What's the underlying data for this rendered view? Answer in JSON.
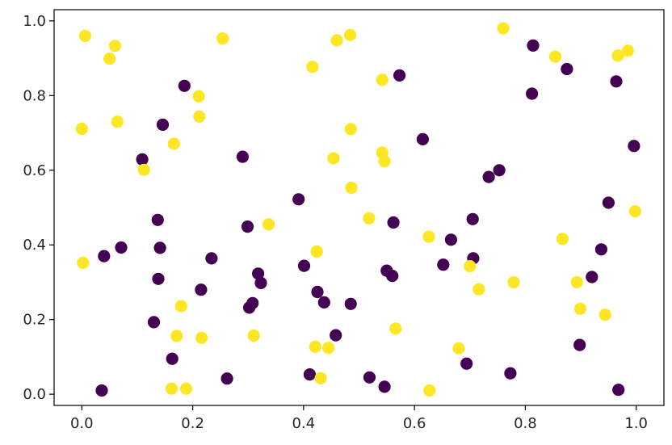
{
  "chart_data": {
    "type": "scatter",
    "xlim": [
      -0.05,
      1.05
    ],
    "ylim": [
      -0.03,
      1.03
    ],
    "x_ticks": [
      0.0,
      0.2,
      0.4,
      0.6,
      0.8,
      1.0
    ],
    "x_tick_labels": [
      "0.0",
      "0.2",
      "0.4",
      "0.6",
      "0.8",
      "1.0"
    ],
    "y_ticks": [
      0.0,
      0.2,
      0.4,
      0.6,
      0.8,
      1.0
    ],
    "y_tick_labels": [
      "0.0",
      "0.2",
      "0.4",
      "0.6",
      "0.8",
      "1.0"
    ],
    "grid": false,
    "legend": "none",
    "colors": {
      "class_0": "#440154",
      "class_1": "#fde725"
    },
    "series": [
      {
        "class": 0,
        "points": [
          [
            0.036,
            0.01
          ],
          [
            0.04,
            0.37
          ],
          [
            0.071,
            0.393
          ],
          [
            0.109,
            0.629
          ],
          [
            0.13,
            0.193
          ],
          [
            0.137,
            0.467
          ],
          [
            0.138,
            0.309
          ],
          [
            0.141,
            0.392
          ],
          [
            0.146,
            0.722
          ],
          [
            0.163,
            0.095
          ],
          [
            0.185,
            0.826
          ],
          [
            0.215,
            0.28
          ],
          [
            0.234,
            0.364
          ],
          [
            0.262,
            0.042
          ],
          [
            0.29,
            0.636
          ],
          [
            0.299,
            0.449
          ],
          [
            0.302,
            0.232
          ],
          [
            0.308,
            0.244
          ],
          [
            0.318,
            0.323
          ],
          [
            0.323,
            0.298
          ],
          [
            0.391,
            0.522
          ],
          [
            0.401,
            0.344
          ],
          [
            0.411,
            0.053
          ],
          [
            0.425,
            0.274
          ],
          [
            0.437,
            0.246
          ],
          [
            0.458,
            0.158
          ],
          [
            0.485,
            0.242
          ],
          [
            0.519,
            0.045
          ],
          [
            0.546,
            0.02
          ],
          [
            0.55,
            0.331
          ],
          [
            0.56,
            0.317
          ],
          [
            0.562,
            0.46
          ],
          [
            0.573,
            0.854
          ],
          [
            0.615,
            0.683
          ],
          [
            0.652,
            0.347
          ],
          [
            0.666,
            0.414
          ],
          [
            0.694,
            0.082
          ],
          [
            0.705,
            0.469
          ],
          [
            0.706,
            0.364
          ],
          [
            0.734,
            0.582
          ],
          [
            0.753,
            0.6
          ],
          [
            0.773,
            0.056
          ],
          [
            0.812,
            0.805
          ],
          [
            0.814,
            0.934
          ],
          [
            0.875,
            0.871
          ],
          [
            0.898,
            0.132
          ],
          [
            0.92,
            0.314
          ],
          [
            0.937,
            0.388
          ],
          [
            0.95,
            0.513
          ],
          [
            0.964,
            0.838
          ],
          [
            0.968,
            0.012
          ],
          [
            0.996,
            0.665
          ]
        ]
      },
      {
        "class": 1,
        "points": [
          [
            0.0,
            0.711
          ],
          [
            0.002,
            0.352
          ],
          [
            0.006,
            0.96
          ],
          [
            0.05,
            0.899
          ],
          [
            0.06,
            0.933
          ],
          [
            0.064,
            0.73
          ],
          [
            0.112,
            0.601
          ],
          [
            0.162,
            0.015
          ],
          [
            0.166,
            0.671
          ],
          [
            0.171,
            0.156
          ],
          [
            0.179,
            0.236
          ],
          [
            0.188,
            0.015
          ],
          [
            0.211,
            0.798
          ],
          [
            0.212,
            0.744
          ],
          [
            0.216,
            0.151
          ],
          [
            0.254,
            0.953
          ],
          [
            0.31,
            0.157
          ],
          [
            0.337,
            0.455
          ],
          [
            0.416,
            0.877
          ],
          [
            0.421,
            0.127
          ],
          [
            0.424,
            0.382
          ],
          [
            0.431,
            0.043
          ],
          [
            0.445,
            0.124
          ],
          [
            0.454,
            0.632
          ],
          [
            0.46,
            0.948
          ],
          [
            0.484,
            0.962
          ],
          [
            0.485,
            0.71
          ],
          [
            0.486,
            0.553
          ],
          [
            0.518,
            0.471
          ],
          [
            0.542,
            0.647
          ],
          [
            0.542,
            0.842
          ],
          [
            0.546,
            0.624
          ],
          [
            0.566,
            0.176
          ],
          [
            0.626,
            0.422
          ],
          [
            0.627,
            0.01
          ],
          [
            0.68,
            0.123
          ],
          [
            0.7,
            0.343
          ],
          [
            0.716,
            0.281
          ],
          [
            0.76,
            0.98
          ],
          [
            0.779,
            0.3
          ],
          [
            0.854,
            0.904
          ],
          [
            0.867,
            0.416
          ],
          [
            0.893,
            0.3
          ],
          [
            0.899,
            0.229
          ],
          [
            0.944,
            0.213
          ],
          [
            0.967,
            0.907
          ],
          [
            0.985,
            0.92
          ],
          [
            0.998,
            0.49
          ]
        ]
      }
    ]
  }
}
